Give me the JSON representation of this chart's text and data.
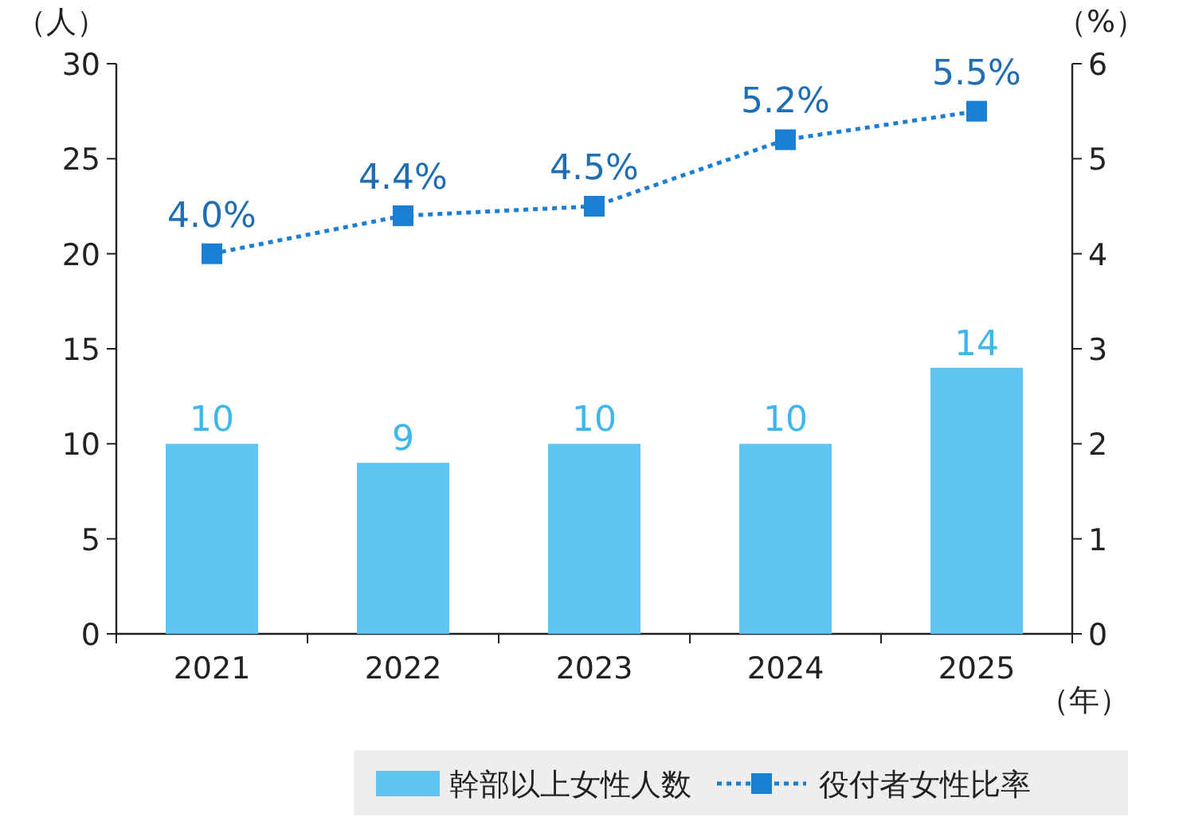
{
  "chart_data": {
    "type": "bar",
    "categories": [
      "2021",
      "2022",
      "2023",
      "2024",
      "2025"
    ],
    "xlabel": "（年）",
    "ylabel": "（人）",
    "y2label": "（%）",
    "series": [
      {
        "name": "幹部以上女性人数",
        "color": "#5ec5f2",
        "values": [
          10,
          9,
          10,
          10,
          14
        ],
        "value_labels": [
          "10",
          "9",
          "10",
          "10",
          "14"
        ]
      },
      {
        "name": "役付者女性比率",
        "type": "line",
        "axis": "y2",
        "color": "#1a7fd4",
        "marker": "square",
        "line_style": "dotted",
        "values": [
          4.0,
          4.4,
          4.5,
          5.2,
          5.5
        ],
        "value_labels": [
          "4.0%",
          "4.4%",
          "4.5%",
          "5.2%",
          "5.5%"
        ]
      }
    ],
    "ylim": [
      0,
      30
    ],
    "yticks": [
      0,
      5,
      10,
      15,
      20,
      25,
      30
    ],
    "y2lim": [
      0,
      6
    ],
    "y2ticks": [
      0,
      1,
      2,
      3,
      4,
      5,
      6
    ],
    "grid": false,
    "legend": "bottom"
  }
}
